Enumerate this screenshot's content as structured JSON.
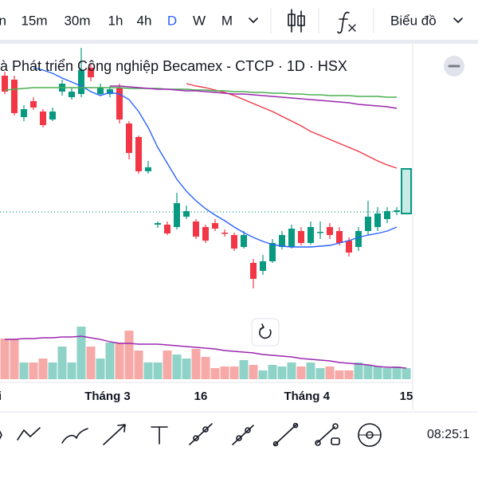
{
  "toolbar": {
    "timeframes": [
      "n",
      "15m",
      "30m",
      "1h",
      "4h",
      "D",
      "W",
      "M"
    ],
    "active": 5,
    "active_color": "#2962ff",
    "chart_menu": "Biểu đồ"
  },
  "chart_data": {
    "type": "candlestick",
    "title": "à Phát triển Công nghiệp Becamex - CTCP · 1D · HSX",
    "open": [
      405,
      400,
      353,
      373,
      360,
      350,
      385,
      378,
      382,
      415,
      382,
      382,
      390,
      345,
      328,
      285,
      218,
      218,
      215,
      228,
      222,
      215,
      220,
      208,
      205,
      190,
      170,
      160,
      172,
      190,
      190,
      210,
      195,
      208,
      215,
      210,
      198,
      190,
      210,
      215,
      225,
      234,
      232
    ],
    "high": [
      410,
      405,
      368,
      378,
      363,
      365,
      400,
      390,
      440,
      420,
      395,
      392,
      395,
      348,
      330,
      298,
      222,
      222,
      258,
      242,
      225,
      218,
      225,
      212,
      208,
      210,
      175,
      180,
      200,
      210,
      218,
      215,
      222,
      222,
      220,
      215,
      202,
      215,
      248,
      240,
      240,
      240,
      288
    ],
    "low": [
      382,
      355,
      348,
      362,
      340,
      348,
      380,
      375,
      378,
      398,
      380,
      378,
      345,
      300,
      282,
      282,
      214,
      205,
      212,
      225,
      200,
      195,
      210,
      203,
      185,
      188,
      138,
      155,
      170,
      187,
      188,
      192,
      193,
      200,
      200,
      192,
      178,
      185,
      205,
      210,
      220,
      230,
      232
    ],
    "close": [
      385,
      358,
      363,
      365,
      343,
      360,
      395,
      385,
      412,
      403,
      390,
      388,
      350,
      308,
      285,
      290,
      220,
      207,
      245,
      235,
      203,
      198,
      213,
      207,
      188,
      205,
      150,
      172,
      195,
      205,
      213,
      195,
      215,
      209,
      205,
      195,
      183,
      210,
      228,
      232,
      235,
      236,
      288
    ],
    "ylim": [
      20,
      445
    ],
    "up_color": "#089981",
    "down_color": "#f23645",
    "highlight_color": "#c8ebe5",
    "lines": [
      {
        "color": "#2962ff",
        "values": [
          null,
          null,
          null,
          415,
          412,
          408,
          402,
          397,
          392,
          385,
          380,
          384,
          382,
          375,
          360,
          340,
          315,
          295,
          275,
          260,
          248,
          238,
          230,
          223,
          215,
          208,
          202,
          197,
          193,
          191,
          190,
          190,
          190,
          191,
          192,
          195,
          198,
          202,
          205,
          207,
          210,
          215,
          null
        ]
      },
      {
        "color": "#f23645",
        "values": [
          null,
          null,
          null,
          null,
          null,
          null,
          null,
          null,
          null,
          null,
          null,
          null,
          null,
          null,
          null,
          null,
          null,
          null,
          null,
          395,
          392,
          390,
          387,
          384,
          380,
          375,
          370,
          365,
          360,
          354,
          348,
          342,
          335,
          330,
          325,
          320,
          315,
          310,
          304,
          298,
          293,
          289,
          null
        ]
      },
      {
        "color": "#4caf50",
        "values": [
          387,
          388,
          389,
          390,
          390,
          390,
          390,
          390,
          390,
          390,
          390,
          390,
          390,
          389,
          389,
          389,
          389,
          388,
          388,
          388,
          387,
          387,
          386,
          386,
          385,
          385,
          384,
          384,
          383,
          383,
          382,
          382,
          381,
          381,
          380,
          380,
          380,
          379,
          379,
          379,
          378,
          378,
          null
        ]
      },
      {
        "color": "#9c27b0",
        "values": [
          null,
          null,
          null,
          null,
          null,
          null,
          null,
          null,
          null,
          null,
          null,
          392,
          392,
          391,
          390,
          389,
          388,
          388,
          387,
          386,
          386,
          385,
          384,
          383,
          382,
          382,
          381,
          380,
          379,
          378,
          377,
          376,
          375,
          374,
          373,
          372,
          371,
          369,
          368,
          367,
          366,
          364,
          null
        ]
      }
    ],
    "price_line": 234,
    "price_line_color": "#089981",
    "volume": [
      51,
      51,
      21,
      21,
      26,
      21,
      41,
      21,
      66,
      41,
      26,
      46,
      46,
      61,
      36,
      21,
      21,
      36,
      31,
      26,
      38,
      28,
      14,
      16,
      16,
      24,
      18,
      11,
      18,
      16,
      21,
      16,
      21,
      14,
      16,
      11,
      11,
      21,
      18,
      16,
      14,
      16,
      14
    ],
    "volume_ylim": [
      0,
      80
    ],
    "volume_up_color": "#8fd3c8",
    "volume_down_color": "#f7a9a7",
    "volume_line": {
      "color": "#9c27b0",
      "values": [
        50,
        50,
        51,
        51,
        52,
        52,
        53,
        53,
        54,
        52,
        50,
        47,
        45,
        45,
        44,
        44,
        44,
        43,
        42,
        41,
        40,
        39,
        38,
        36,
        35,
        34,
        33,
        31,
        30,
        29,
        28,
        26,
        25,
        24,
        23,
        21,
        20,
        19,
        18,
        16,
        15,
        15,
        14
      ]
    },
    "xticks": [
      {
        "value": -0.5,
        "label": "i"
      },
      {
        "value": 10.75,
        "label": "Tháng 3"
      },
      {
        "value": 20.5,
        "label": "16"
      },
      {
        "value": 31.6,
        "label": "Tháng 4"
      },
      {
        "value": 42,
        "label": "15"
      }
    ]
  },
  "status": {
    "time": "08:25:1"
  }
}
